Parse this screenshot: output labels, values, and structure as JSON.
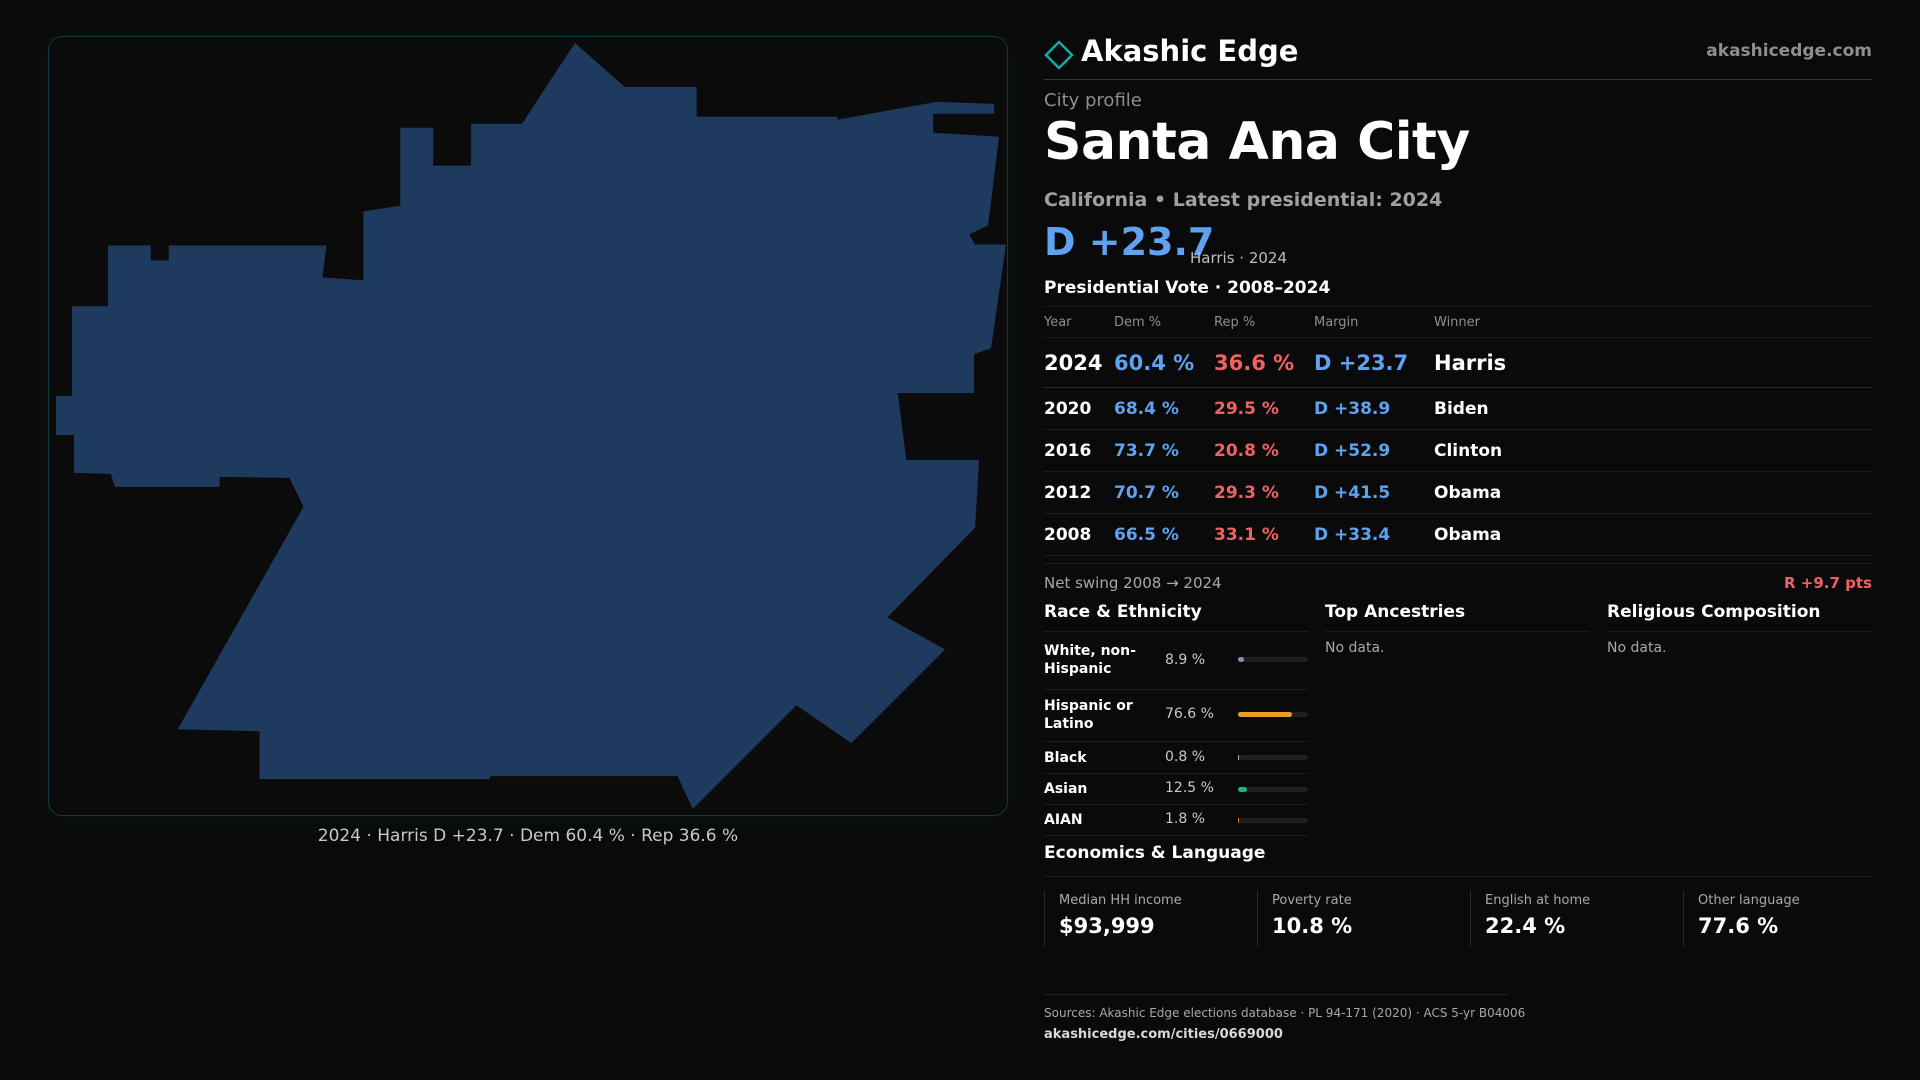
{
  "map": {
    "fill_color": "#1e3a5f",
    "caption": "2024 · Harris D +23.7 · Dem 60.4 % · Rep 36.6 %"
  },
  "header": {
    "brand_name": "Akashic Edge",
    "brand_url": "akashicedge.com",
    "logo_icon": "diamond-outline-icon"
  },
  "profile": {
    "kicker": "City profile",
    "title": "Santa Ana City",
    "subtitle": "California • Latest presidential: 2024",
    "margin": "D +23.7",
    "margin_note": "Harris · 2024"
  },
  "vote": {
    "title": "Presidential Vote · 2008–2024",
    "columns": [
      "Year",
      "Dem %",
      "Rep %",
      "Margin",
      "Winner"
    ],
    "rows": [
      {
        "year": "2024",
        "dem": "60.4 %",
        "rep": "36.6 %",
        "margin": "D +23.7",
        "winner": "Harris"
      },
      {
        "year": "2020",
        "dem": "68.4 %",
        "rep": "29.5 %",
        "margin": "D +38.9",
        "winner": "Biden"
      },
      {
        "year": "2016",
        "dem": "73.7 %",
        "rep": "20.8 %",
        "margin": "D +52.9",
        "winner": "Clinton"
      },
      {
        "year": "2012",
        "dem": "70.7 %",
        "rep": "29.3 %",
        "margin": "D +41.5",
        "winner": "Obama"
      },
      {
        "year": "2008",
        "dem": "66.5 %",
        "rep": "33.1 %",
        "margin": "D +33.4",
        "winner": "Obama"
      }
    ],
    "swing_label": "Net swing 2008 → 2024",
    "swing_value": "R +9.7 pts",
    "colors": {
      "dem": "#5ea2f0",
      "rep": "#f06262"
    }
  },
  "race": {
    "title": "Race & Ethnicity",
    "rows": [
      {
        "label": "White, non-Hispanic",
        "pct": "8.9 %",
        "value": 8.9,
        "color": "#8a8fb0"
      },
      {
        "label": "Hispanic or Latino",
        "pct": "76.6 %",
        "value": 76.6,
        "color": "#e8a020"
      },
      {
        "label": "Black",
        "pct": "0.8 %",
        "value": 0.8,
        "color": "#b0b0b0"
      },
      {
        "label": "Asian",
        "pct": "12.5 %",
        "value": 12.5,
        "color": "#20b08a"
      },
      {
        "label": "AIAN",
        "pct": "1.8 %",
        "value": 1.8,
        "color": "#e07020"
      }
    ]
  },
  "ancestries": {
    "title": "Top Ancestries",
    "empty": "No data."
  },
  "religion": {
    "title": "Religious Composition",
    "empty": "No data."
  },
  "economics": {
    "title": "Economics & Language",
    "cards": [
      {
        "label": "Median HH income",
        "value": "$93,999"
      },
      {
        "label": "Poverty rate",
        "value": "10.8 %"
      },
      {
        "label": "English at home",
        "value": "22.4 %"
      },
      {
        "label": "Other language",
        "value": "77.6 %"
      }
    ]
  },
  "footer": {
    "sources": "Sources: Akashic Edge elections database · PL 94-171 (2020) · ACS 5-yr B04006",
    "url": "akashicedge.com/cities/0669000"
  }
}
